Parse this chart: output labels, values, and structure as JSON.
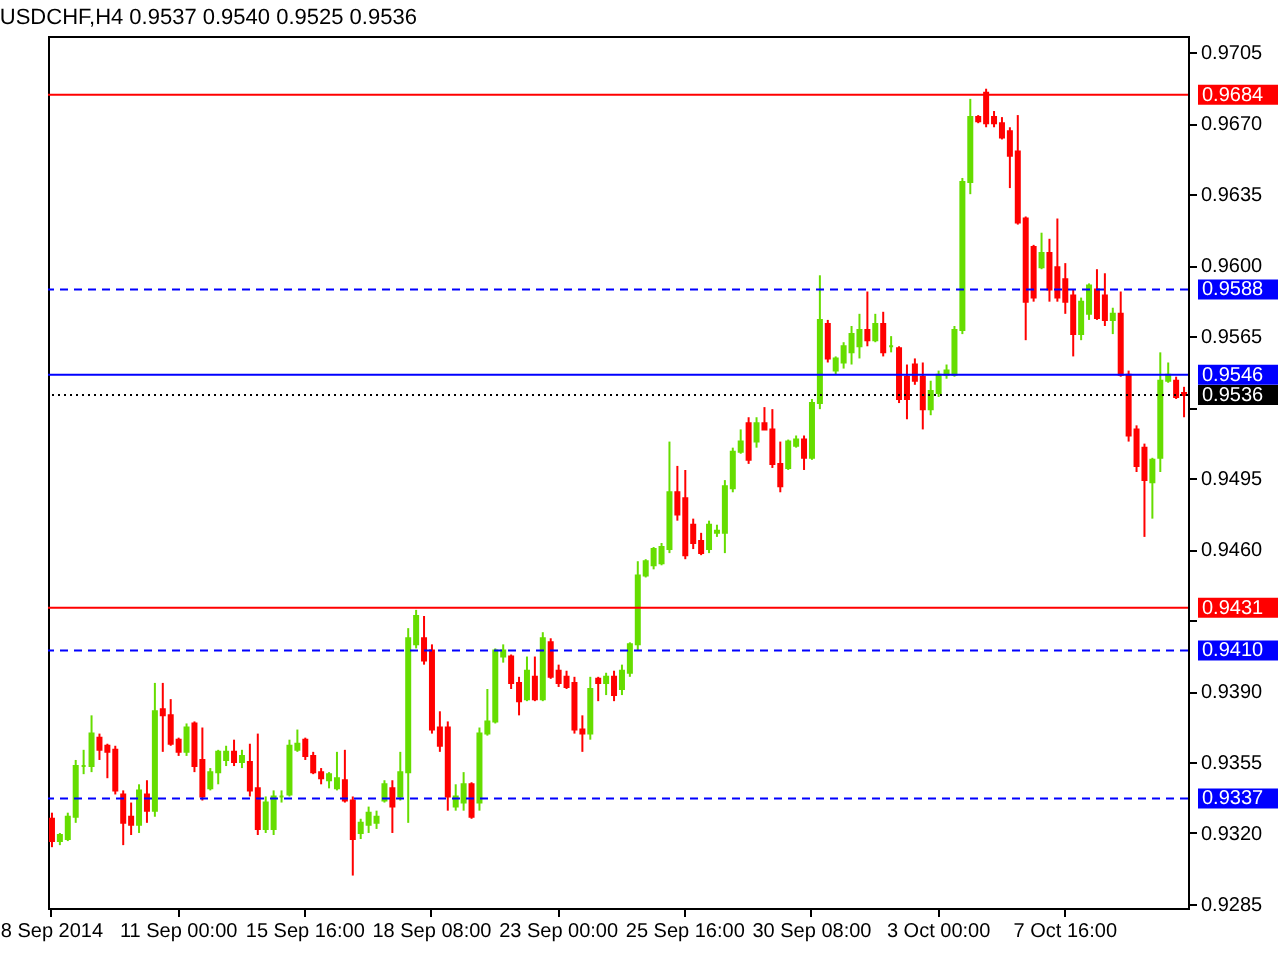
{
  "chart_data": {
    "type": "candlestick",
    "title": "USDCHF,H4  0.9537 0.9540 0.9525 0.9536",
    "categories": [
      "8 Sep 2014",
      null,
      null,
      null,
      null,
      null,
      null,
      null,
      null,
      null,
      null,
      null,
      null,
      null,
      null,
      null,
      "11 Sep 00:00",
      null,
      null,
      null,
      null,
      null,
      null,
      null,
      null,
      null,
      null,
      null,
      null,
      null,
      null,
      null,
      "15 Sep 16:00",
      null,
      null,
      null,
      null,
      null,
      null,
      null,
      null,
      null,
      null,
      null,
      null,
      null,
      null,
      null,
      "18 Sep 08:00",
      null,
      null,
      null,
      null,
      null,
      null,
      null,
      null,
      null,
      null,
      null,
      null,
      null,
      null,
      null,
      "23 Sep 00:00",
      null,
      null,
      null,
      null,
      null,
      null,
      null,
      null,
      null,
      null,
      null,
      null,
      null,
      null,
      null,
      "25 Sep 16:00",
      null,
      null,
      null,
      null,
      null,
      null,
      null,
      null,
      null,
      null,
      null,
      null,
      null,
      null,
      null,
      "30 Sep 08:00",
      null,
      null,
      null,
      null,
      null,
      null,
      null,
      null,
      null,
      null,
      null,
      null,
      null,
      null,
      null,
      "3 Oct 00:00",
      null,
      null,
      null,
      null,
      null,
      null,
      null,
      null,
      null,
      null,
      null,
      null,
      null,
      null,
      null,
      "7 Oct 16:00",
      null,
      null,
      null,
      null,
      null,
      null,
      null,
      null,
      null,
      null,
      null,
      null,
      null,
      null,
      null
    ],
    "ohlc": [
      [
        0.9327,
        0.933,
        0.9313,
        0.9316
      ],
      [
        0.9316,
        0.932,
        0.9314,
        0.9319
      ],
      [
        0.9317,
        0.933,
        0.9316,
        0.9328
      ],
      [
        0.9328,
        0.9356,
        0.9325,
        0.9353
      ],
      [
        0.9353,
        0.9361,
        0.9349,
        0.9353
      ],
      [
        0.9353,
        0.9378,
        0.935,
        0.9369
      ],
      [
        0.9367,
        0.9369,
        0.9356,
        0.9361
      ],
      [
        0.9363,
        0.9364,
        0.9347,
        0.936
      ],
      [
        0.9361,
        0.9363,
        0.9339,
        0.9341
      ],
      [
        0.9339,
        0.9341,
        0.9314,
        0.9325
      ],
      [
        0.9328,
        0.9335,
        0.9319,
        0.9324
      ],
      [
        0.9324,
        0.9344,
        0.932,
        0.9341
      ],
      [
        0.9339,
        0.9346,
        0.9325,
        0.9331
      ],
      [
        0.9331,
        0.9394,
        0.9328,
        0.938
      ],
      [
        0.9381,
        0.9394,
        0.936,
        0.9378
      ],
      [
        0.9378,
        0.9386,
        0.9363,
        0.9364
      ],
      [
        0.9366,
        0.9367,
        0.9358,
        0.936
      ],
      [
        0.936,
        0.9374,
        0.9358,
        0.9372
      ],
      [
        0.9374,
        0.9375,
        0.935,
        0.9353
      ],
      [
        0.9356,
        0.9372,
        0.9336,
        0.9338
      ],
      [
        0.9342,
        0.9352,
        0.9341,
        0.935
      ],
      [
        0.935,
        0.9361,
        0.9344,
        0.936
      ],
      [
        0.9356,
        0.9363,
        0.9353,
        0.936
      ],
      [
        0.936,
        0.9366,
        0.9353,
        0.9355
      ],
      [
        0.9355,
        0.9361,
        0.9352,
        0.9358
      ],
      [
        0.9355,
        0.9364,
        0.9338,
        0.9341
      ],
      [
        0.9342,
        0.9369,
        0.9319,
        0.9322
      ],
      [
        0.9322,
        0.9338,
        0.932,
        0.9335
      ],
      [
        0.9322,
        0.9341,
        0.9319,
        0.9338
      ],
      [
        0.9338,
        0.9341,
        0.9335,
        0.9338
      ],
      [
        0.9339,
        0.9366,
        0.9338,
        0.9363
      ],
      [
        0.9361,
        0.9371,
        0.936,
        0.9364
      ],
      [
        0.9366,
        0.9367,
        0.9356,
        0.9358
      ],
      [
        0.9358,
        0.936,
        0.9349,
        0.935
      ],
      [
        0.935,
        0.9352,
        0.9344,
        0.9347
      ],
      [
        0.9346,
        0.935,
        0.9342,
        0.9349
      ],
      [
        0.9342,
        0.936,
        0.9341,
        0.9347
      ],
      [
        0.9346,
        0.9361,
        0.9335,
        0.9336
      ],
      [
        0.9336,
        0.9338,
        0.9299,
        0.9317
      ],
      [
        0.932,
        0.9327,
        0.9317,
        0.9325
      ],
      [
        0.9324,
        0.9333,
        0.932,
        0.933
      ],
      [
        0.9325,
        0.9331,
        0.9322,
        0.9328
      ],
      [
        0.9336,
        0.9346,
        0.9335,
        0.9344
      ],
      [
        0.9342,
        0.9346,
        0.932,
        0.9333
      ],
      [
        0.9338,
        0.936,
        0.9336,
        0.935
      ],
      [
        0.935,
        0.9421,
        0.9325,
        0.9416
      ],
      [
        0.9413,
        0.943,
        0.9411,
        0.9427
      ],
      [
        0.9416,
        0.9427,
        0.9403,
        0.9405
      ],
      [
        0.941,
        0.9413,
        0.9369,
        0.9371
      ],
      [
        0.9372,
        0.938,
        0.936,
        0.9363
      ],
      [
        0.9372,
        0.9375,
        0.9331,
        0.9338
      ],
      [
        0.9333,
        0.9344,
        0.9331,
        0.9338
      ],
      [
        0.9335,
        0.935,
        0.9331,
        0.9344
      ],
      [
        0.9344,
        0.9345,
        0.9327,
        0.9328
      ],
      [
        0.9335,
        0.9372,
        0.9331,
        0.9369
      ],
      [
        0.9369,
        0.9391,
        0.9368,
        0.9375
      ],
      [
        0.9375,
        0.9411,
        0.9374,
        0.941
      ],
      [
        0.9407,
        0.9413,
        0.9404,
        0.941
      ],
      [
        0.9407,
        0.9408,
        0.9391,
        0.9394
      ],
      [
        0.9394,
        0.9397,
        0.9378,
        0.9385
      ],
      [
        0.9386,
        0.9407,
        0.9385,
        0.94
      ],
      [
        0.9397,
        0.9407,
        0.9385,
        0.9386
      ],
      [
        0.9386,
        0.9419,
        0.9385,
        0.9416
      ],
      [
        0.9414,
        0.9416,
        0.9396,
        0.9397
      ],
      [
        0.94,
        0.9403,
        0.9392,
        0.9394
      ],
      [
        0.9397,
        0.94,
        0.9391,
        0.9392
      ],
      [
        0.9394,
        0.9397,
        0.9369,
        0.9371
      ],
      [
        0.9371,
        0.9378,
        0.936,
        0.9369
      ],
      [
        0.9369,
        0.9397,
        0.9366,
        0.9391
      ],
      [
        0.9396,
        0.9397,
        0.9385,
        0.9394
      ],
      [
        0.9394,
        0.9399,
        0.9388,
        0.9397
      ],
      [
        0.9397,
        0.94,
        0.9385,
        0.9388
      ],
      [
        0.9391,
        0.9403,
        0.9388,
        0.94
      ],
      [
        0.9399,
        0.9414,
        0.9397,
        0.9413
      ],
      [
        0.9413,
        0.9454,
        0.941,
        0.9447
      ],
      [
        0.9447,
        0.9455,
        0.9446,
        0.9454
      ],
      [
        0.9452,
        0.9461,
        0.945,
        0.946
      ],
      [
        0.9453,
        0.9463,
        0.9452,
        0.9461
      ],
      [
        0.946,
        0.9513,
        0.9458,
        0.9488
      ],
      [
        0.9488,
        0.9501,
        0.9474,
        0.9477
      ],
      [
        0.9485,
        0.9499,
        0.9455,
        0.9457
      ],
      [
        0.9472,
        0.9475,
        0.946,
        0.9463
      ],
      [
        0.9464,
        0.9468,
        0.9457,
        0.9458
      ],
      [
        0.946,
        0.9474,
        0.9458,
        0.9472
      ],
      [
        0.9468,
        0.9472,
        0.9466,
        0.9469
      ],
      [
        0.9468,
        0.9494,
        0.9458,
        0.9491
      ],
      [
        0.949,
        0.951,
        0.9488,
        0.9508
      ],
      [
        0.9508,
        0.9519,
        0.9507,
        0.9513
      ],
      [
        0.9522,
        0.9525,
        0.9502,
        0.9504
      ],
      [
        0.9513,
        0.9525,
        0.951,
        0.9522
      ],
      [
        0.9522,
        0.953,
        0.9519,
        0.9519
      ],
      [
        0.9519,
        0.9529,
        0.95,
        0.9502
      ],
      [
        0.9502,
        0.9513,
        0.9488,
        0.9491
      ],
      [
        0.95,
        0.9514,
        0.9499,
        0.9513
      ],
      [
        0.9511,
        0.9516,
        0.951,
        0.9514
      ],
      [
        0.9514,
        0.9516,
        0.9499,
        0.9505
      ],
      [
        0.9505,
        0.9534,
        0.9504,
        0.9532
      ],
      [
        0.9532,
        0.9595,
        0.9529,
        0.9573
      ],
      [
        0.9571,
        0.9573,
        0.9552,
        0.9554
      ],
      [
        0.9548,
        0.9555,
        0.9546,
        0.9554
      ],
      [
        0.9552,
        0.9562,
        0.9549,
        0.956
      ],
      [
        0.9557,
        0.957,
        0.9551,
        0.9566
      ],
      [
        0.956,
        0.9576,
        0.9554,
        0.9568
      ],
      [
        0.9568,
        0.9587,
        0.956,
        0.9563
      ],
      [
        0.9563,
        0.9576,
        0.9562,
        0.9571
      ],
      [
        0.9571,
        0.9577,
        0.9555,
        0.9557
      ],
      [
        0.956,
        0.9565,
        0.9557,
        0.956
      ],
      [
        0.9559,
        0.956,
        0.9532,
        0.9534
      ],
      [
        0.9545,
        0.9551,
        0.9524,
        0.9534
      ],
      [
        0.9551,
        0.9554,
        0.9541,
        0.9543
      ],
      [
        0.9545,
        0.9552,
        0.9519,
        0.9529
      ],
      [
        0.9529,
        0.9543,
        0.9526,
        0.9538
      ],
      [
        0.9537,
        0.9548,
        0.9535,
        0.9546
      ],
      [
        0.9546,
        0.9551,
        0.9544,
        0.9548
      ],
      [
        0.9546,
        0.957,
        0.9545,
        0.9568
      ],
      [
        0.9568,
        0.9643,
        0.9566,
        0.9641
      ],
      [
        0.9641,
        0.9682,
        0.9635,
        0.9673
      ],
      [
        0.9673,
        0.9674,
        0.967,
        0.9671
      ],
      [
        0.9685,
        0.9687,
        0.9668,
        0.967
      ],
      [
        0.9673,
        0.9676,
        0.9668,
        0.967
      ],
      [
        0.967,
        0.9673,
        0.9662,
        0.9663
      ],
      [
        0.9666,
        0.9668,
        0.9638,
        0.9654
      ],
      [
        0.9656,
        0.9674,
        0.962,
        0.9621
      ],
      [
        0.9623,
        0.9624,
        0.9563,
        0.9582
      ],
      [
        0.9609,
        0.961,
        0.9582,
        0.9584
      ],
      [
        0.9599,
        0.9616,
        0.9598,
        0.9606
      ],
      [
        0.9606,
        0.9613,
        0.9582,
        0.9588
      ],
      [
        0.9599,
        0.9623,
        0.9582,
        0.9584
      ],
      [
        0.9593,
        0.9601,
        0.9576,
        0.9582
      ],
      [
        0.9585,
        0.9588,
        0.9555,
        0.9566
      ],
      [
        0.9566,
        0.9584,
        0.9563,
        0.9582
      ],
      [
        0.9576,
        0.9591,
        0.9573,
        0.959
      ],
      [
        0.9588,
        0.9598,
        0.9573,
        0.9574
      ],
      [
        0.9585,
        0.9596,
        0.957,
        0.9573
      ],
      [
        0.9573,
        0.9579,
        0.9566,
        0.9576
      ],
      [
        0.9576,
        0.9587,
        0.9545,
        0.9546
      ],
      [
        0.9546,
        0.9548,
        0.9513,
        0.9516
      ],
      [
        0.9519,
        0.9521,
        0.9498,
        0.9501
      ],
      [
        0.951,
        0.9512,
        0.9466,
        0.9494
      ],
      [
        0.9493,
        0.9505,
        0.9475,
        0.9504
      ],
      [
        0.9505,
        0.9557,
        0.9498,
        0.9543
      ],
      [
        0.9543,
        0.9552,
        0.9542,
        0.9546
      ],
      [
        0.9543,
        0.9545,
        0.9534,
        0.9535
      ],
      [
        0.9537,
        0.954,
        0.9525,
        0.9536
      ]
    ],
    "ylim": [
      0.9283,
      0.9713
    ],
    "yticks": [
      0.9705,
      {
        "value": 0.967,
        "label": "0.9670"
      },
      0.9635,
      {
        "value": 0.96,
        "label": "0.9600"
      },
      0.9565,
      {
        "value": 0.953,
        "label": null
      },
      0.9495,
      {
        "value": 0.946,
        "label": "0.9460"
      },
      {
        "value": 0.9425,
        "label": null
      },
      {
        "value": 0.939,
        "label": "0.9390"
      },
      0.9355,
      {
        "value": 0.932,
        "label": "0.9320"
      },
      0.9285
    ],
    "ref_lines": [
      {
        "axis": "y",
        "value": 0.9684,
        "label": "0.9684",
        "color": "#ff0000",
        "line_style": "solid"
      },
      {
        "axis": "y",
        "value": 0.9588,
        "label": "0.9588",
        "color": "#0000ff",
        "line_style": "dashed"
      },
      {
        "axis": "y",
        "value": 0.9546,
        "label": "0.9546",
        "color": "#0000ff",
        "line_style": "solid"
      },
      {
        "axis": "y",
        "value": 0.9536,
        "label": "0.9536",
        "color": "#000000",
        "line_style": "dotted"
      },
      {
        "axis": "y",
        "value": 0.9431,
        "label": "0.9431",
        "color": "#ff0000",
        "line_style": "solid"
      },
      {
        "axis": "y",
        "value": 0.941,
        "label": "0.9410",
        "color": "#0000ff",
        "line_style": "dashed"
      },
      {
        "axis": "y",
        "value": 0.9337,
        "label": "0.9337",
        "color": "#0000ff",
        "line_style": "dashed"
      }
    ],
    "grid": false
  }
}
